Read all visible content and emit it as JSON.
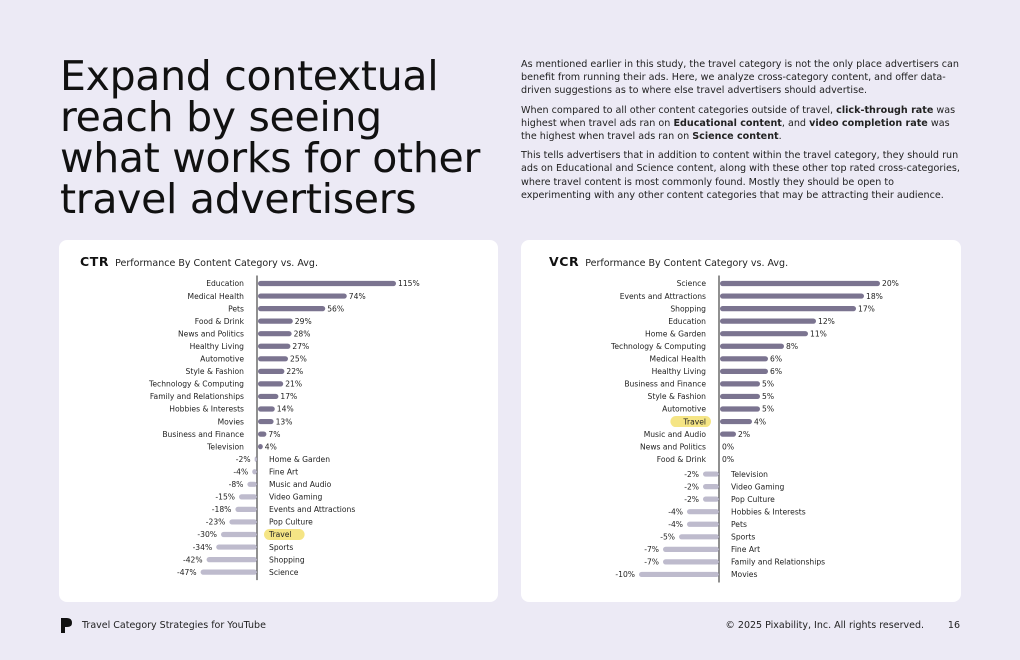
{
  "headline": "Expand contextual reach by seeing what works for other travel advertisers",
  "intro": {
    "p1": "As mentioned earlier in this study, the travel category is not the only place advertisers can benefit from running their ads. Here, we analyze cross-category content, and offer data-driven suggestions as to where else travel advertisers should advertise.",
    "p2_a": "When compared to all other content categories outside of travel, ",
    "p2_b": "click-through rate",
    "p2_c": " was highest when travel ads ran on ",
    "p2_d": "Educational content",
    "p2_e": ", and ",
    "p2_f": "video completion rate",
    "p2_g": " was the highest when travel ads ran on ",
    "p2_h": "Science content",
    "p2_i": ".",
    "p3": "This tells advertisers that in addition to content within the travel category, they should run ads on Educational and Science content, along with these other top rated cross-categories, where travel content is most commonly found. Mostly they should be open to experimenting with any other content categories that may be attracting their audience."
  },
  "colors": {
    "positive": "#7b7490",
    "negative": "#bebbcd",
    "highlight": "#f5e585",
    "background": "#eceaf5"
  },
  "ctr": {
    "label": "CTR",
    "subtitle": "Performance By Content Category vs. Avg."
  },
  "vcr": {
    "label": "VCR",
    "subtitle": "Performance By Content Category vs. Avg."
  },
  "chart_data": [
    {
      "type": "bar",
      "orientation": "horizontal",
      "title": "CTR Performance By Content Category vs. Avg.",
      "highlight": "Travel",
      "categories": [
        "Education",
        "Medical Health",
        "Pets",
        "Food & Drink",
        "News and Politics",
        "Healthy Living",
        "Automotive",
        "Style & Fashion",
        "Technology & Computing",
        "Family and Relationships",
        "Hobbies & Interests",
        "Movies",
        "Business and Finance",
        "Television",
        "Home & Garden",
        "Fine Art",
        "Music and Audio",
        "Video Gaming",
        "Events and Attractions",
        "Pop Culture",
        "Travel",
        "Sports",
        "Shopping",
        "Science"
      ],
      "values": [
        115,
        74,
        56,
        29,
        28,
        27,
        25,
        22,
        21,
        17,
        14,
        13,
        7,
        4,
        -2,
        -4,
        -8,
        -15,
        -18,
        -23,
        -30,
        -34,
        -42,
        -47
      ],
      "labels": [
        "115%",
        "74%",
        "56%",
        "29%",
        "28%",
        "27%",
        "25%",
        "22%",
        "21%",
        "17%",
        "14%",
        "13%",
        "7%",
        "4%",
        "-2%",
        "-4%",
        "-8%",
        "-15%",
        "-18%",
        "-23%",
        "-30%",
        "-34%",
        "-42%",
        "-47%"
      ]
    },
    {
      "type": "bar",
      "orientation": "horizontal",
      "title": "VCR Performance By Content Category vs. Avg.",
      "highlight": "Travel",
      "categories": [
        "Science",
        "Events and Attractions",
        "Shopping",
        "Education",
        "Home & Garden",
        "Technology & Computing",
        "Medical Health",
        "Healthy Living",
        "Business and Finance",
        "Style & Fashion",
        "Automotive",
        "Travel",
        "Music and Audio",
        "News and Politics",
        "Food & Drink",
        "Television",
        "Video Gaming",
        "Pop Culture",
        "Hobbies & Interests",
        "Pets",
        "Sports",
        "Fine Art",
        "Family and Relationships",
        "Movies"
      ],
      "values": [
        20,
        18,
        17,
        12,
        11,
        8,
        6,
        6,
        5,
        5,
        5,
        4,
        2,
        0,
        0,
        -2,
        -2,
        -2,
        -4,
        -4,
        -5,
        -7,
        -7,
        -10
      ],
      "labels": [
        "20%",
        "18%",
        "17%",
        "12%",
        "11%",
        "8%",
        "6%",
        "6%",
        "5%",
        "5%",
        "5%",
        "4%",
        "2%",
        "0%",
        "0%",
        "-2%",
        "-2%",
        "-2%",
        "-4%",
        "-4%",
        "-5%",
        "-7%",
        "-7%",
        "-10%"
      ]
    }
  ],
  "footer": {
    "left": "Travel Category Strategies for YouTube",
    "right": "© 2025 Pixability, Inc. All rights reserved.",
    "page": "16"
  }
}
